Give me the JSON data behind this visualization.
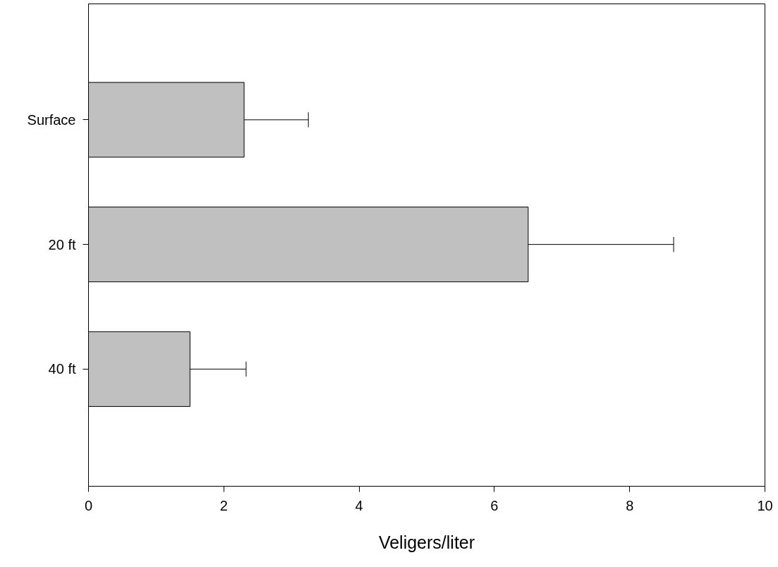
{
  "chart_data": {
    "type": "bar",
    "orientation": "horizontal",
    "xlabel": "Veligers/liter",
    "categories": [
      "Surface",
      "20 ft",
      "40 ft"
    ],
    "values": [
      2.3,
      6.5,
      1.5
    ],
    "errors": [
      [
        2.3,
        3.25
      ],
      [
        6.5,
        8.65
      ],
      [
        1.5,
        2.33
      ]
    ],
    "color": "#c0c0c0",
    "xlim": [
      0,
      10
    ],
    "xticks": [
      0,
      2,
      4,
      6,
      8,
      10
    ],
    "grid": false
  }
}
